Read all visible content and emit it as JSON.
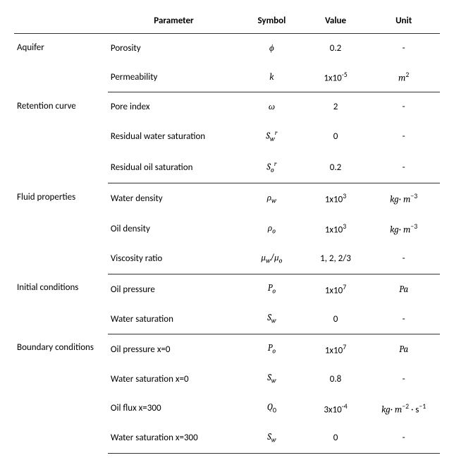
{
  "headers": {
    "category": "",
    "parameter": "Parameter",
    "symbol": "Symbol",
    "value": "Value",
    "unit": "Unit"
  },
  "sections": [
    {
      "category": "Aquifer",
      "rows": [
        {
          "parameter": "Porosity",
          "symbol": "<span class='it'>ϕ</span>",
          "value": "0.2",
          "unit": "-"
        },
        {
          "parameter": "Permeability",
          "symbol": "<span class='it'>k</span>",
          "value": "1x10<sup>-5</sup>",
          "unit": "<span class='it'>m</span><sup>2</sup>"
        }
      ]
    },
    {
      "category": "Retention curve",
      "rows": [
        {
          "parameter": "Pore index",
          "symbol": "<span class='it'>ω</span>",
          "value": "2",
          "unit": "-"
        },
        {
          "parameter": "Residual water saturation",
          "symbol": "<span class='it'>S</span><sub class='it'>w</sub><sup class='it'>r</sup>",
          "value": "0",
          "unit": "-"
        },
        {
          "parameter": "Residual oil saturation",
          "symbol": "<span class='it'>S</span><sub class='it'>o</sub><sup class='it'>r</sup>",
          "value": "0.2",
          "unit": "-"
        }
      ]
    },
    {
      "category": "Fluid properties",
      "rows": [
        {
          "parameter": "Water density",
          "symbol": "<span class='it'>ρ</span><sub class='it'>w</sub>",
          "value": "1x10<sup>3</sup>",
          "unit": "<span class='it'>kg</span>· <span class='it'>m</span><sup>−3</sup>"
        },
        {
          "parameter": "Oil density",
          "symbol": "<span class='it'>ρ</span><sub class='it'>o</sub>",
          "value": "1x10<sup>3</sup>",
          "unit": "<span class='it'>kg</span>· <span class='it'>m</span><sup>−3</sup>"
        },
        {
          "parameter": "Viscosity ratio",
          "symbol": "<span class='it'>μ</span><sub class='it'>w</sub>/<span class='it'>μ</span><sub class='it'>o</sub>",
          "value": "1, 2, 2/3",
          "unit": "-"
        }
      ]
    },
    {
      "category": "Initial conditions",
      "rows": [
        {
          "parameter": "Oil pressure",
          "symbol": "<span class='it'>P</span><sub class='it'>o</sub>",
          "value": "1x10<sup>7</sup>",
          "unit": "<span class='it'>Pa</span>"
        },
        {
          "parameter": "Water saturation",
          "symbol": "<span class='it'>S</span><sub class='it'>w</sub>",
          "value": "0",
          "unit": "-"
        }
      ]
    },
    {
      "category": "Boundary conditions",
      "rows": [
        {
          "parameter": "Oil pressure x=0",
          "symbol": "<span class='it'>P</span><sub class='it'>o</sub>",
          "value": "1x10<sup>7</sup>",
          "unit": "<span class='it'>Pa</span>"
        },
        {
          "parameter": "Water saturation x=0",
          "symbol": "<span class='it'>S</span><sub class='it'>w</sub>",
          "value": "0.8",
          "unit": "-"
        },
        {
          "parameter": "Oil flux x=300",
          "symbol": "<span class='it'>Q</span><sub>0</sub>",
          "value": "3x10<sup>-4</sup>",
          "unit": "<span class='it'>kg</span>· <span class='it'>m</span><sup>−2</sup> · s<sup>−1</sup>"
        },
        {
          "parameter": "Water saturation x=300",
          "symbol": "<span class='it'>S</span><sub class='it'>w</sub>",
          "value": "0",
          "unit": "-"
        }
      ]
    }
  ],
  "colwidths": {
    "category": "22%",
    "parameter": "31%",
    "symbol": "15%",
    "value": "15%",
    "unit": "17%"
  }
}
